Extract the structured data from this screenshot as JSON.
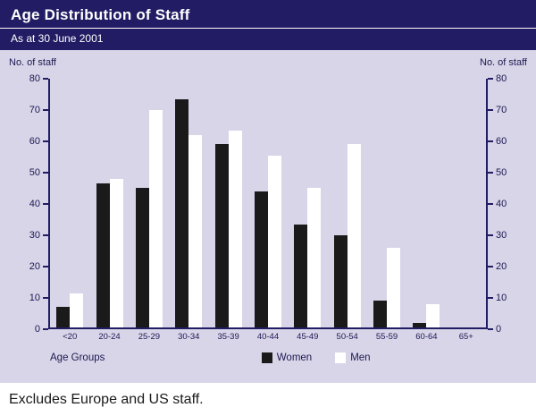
{
  "header": {
    "title": "Age Distribution of Staff",
    "subtitle": "As at 30 June 2001"
  },
  "chart": {
    "left_axis_label": "No. of staff",
    "right_axis_label": "No. of staff",
    "x_axis_label": "Age Groups",
    "legend": [
      {
        "label": "Women",
        "color": "#1a1a1a"
      },
      {
        "label": "Men",
        "color": "#ffffff"
      }
    ]
  },
  "chart_data": {
    "type": "bar",
    "title": "Age Distribution of Staff",
    "subtitle": "As at 30 June 2001",
    "xlabel": "Age Groups",
    "ylabel": "No. of staff",
    "ylim": [
      0,
      80
    ],
    "yticks": [
      0,
      10,
      20,
      30,
      40,
      50,
      60,
      70,
      80
    ],
    "grid": false,
    "legend_position": "bottom",
    "categories": [
      "<20",
      "20-24",
      "25-29",
      "30-34",
      "35-39",
      "40-44",
      "45-49",
      "50-54",
      "55-59",
      "60-64",
      "65+"
    ],
    "series": [
      {
        "name": "Women",
        "color": "#1a1a1a",
        "values": [
          6.5,
          46,
          44.5,
          73,
          58.5,
          43.5,
          33,
          29.5,
          8.5,
          1.5,
          0
        ]
      },
      {
        "name": "Men",
        "color": "#ffffff",
        "values": [
          11,
          47.5,
          69.5,
          61.5,
          63,
          55,
          44.5,
          58.5,
          25.5,
          7.5,
          0
        ]
      }
    ]
  },
  "footer": {
    "note": "Excludes Europe and US staff."
  }
}
